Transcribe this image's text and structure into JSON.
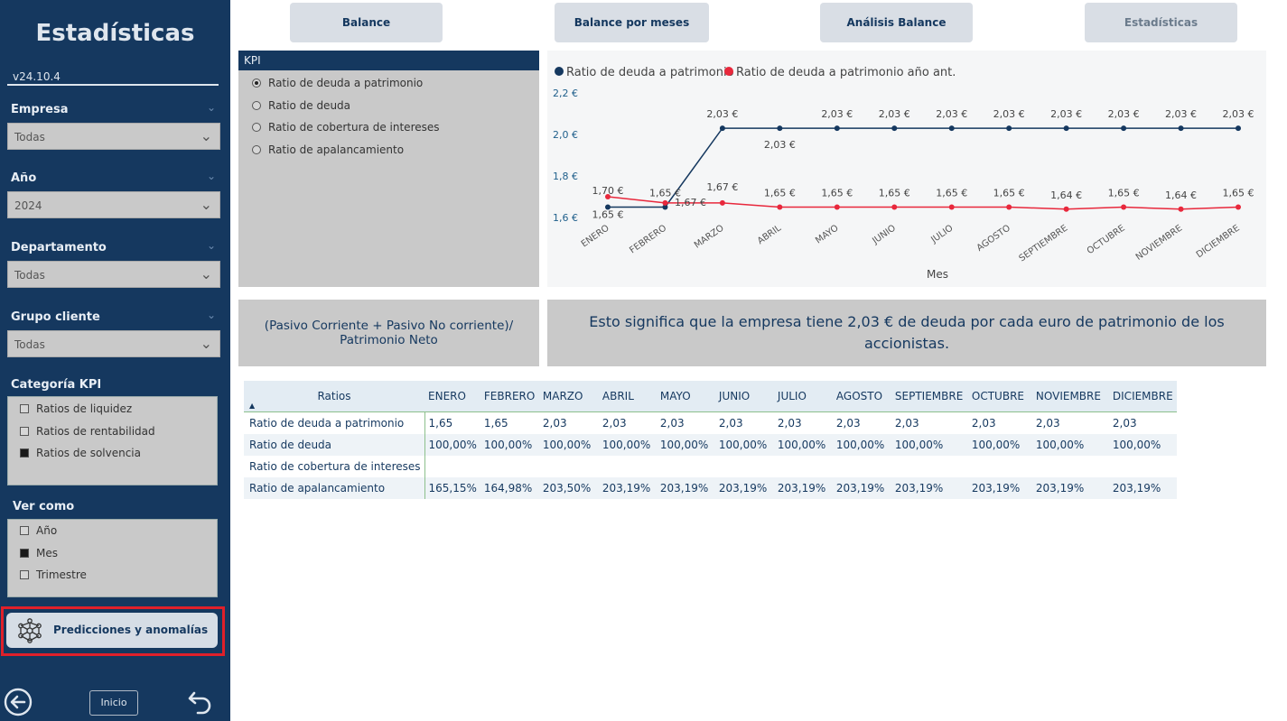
{
  "sidebar": {
    "title": "Estadísticas",
    "version": "v24.10.4",
    "filters": [
      {
        "label": "Empresa",
        "value": "Todas"
      },
      {
        "label": "Año",
        "value": "2024"
      },
      {
        "label": "Departamento",
        "value": "Todas"
      },
      {
        "label": "Grupo cliente",
        "value": "Todas"
      }
    ],
    "categoria": {
      "label": "Categoría KPI",
      "items": [
        {
          "label": "Ratios de liquidez",
          "checked": false
        },
        {
          "label": "Ratios de rentabilidad",
          "checked": false
        },
        {
          "label": "Ratios de solvencia",
          "checked": true
        }
      ]
    },
    "ver_como": {
      "label": "Ver como",
      "items": [
        {
          "label": "Año",
          "checked": false
        },
        {
          "label": "Mes",
          "checked": true
        },
        {
          "label": "Trimestre",
          "checked": false
        }
      ]
    },
    "predictions_button": "Predicciones y anomalías",
    "home_button": "Inicio"
  },
  "tabs": [
    "Balance",
    "Balance por meses",
    "Análisis Balance",
    "Estadísticas"
  ],
  "kpi": {
    "header": "KPI",
    "options": [
      {
        "label": "Ratio de deuda a patrimonio",
        "selected": true
      },
      {
        "label": "Ratio de deuda",
        "selected": false
      },
      {
        "label": "Ratio de cobertura de intereses",
        "selected": false
      },
      {
        "label": "Ratio de apalancamiento",
        "selected": false
      }
    ]
  },
  "chart_data": {
    "type": "line",
    "x": [
      "ENERO",
      "FEBRERO",
      "MARZO",
      "ABRIL",
      "MAYO",
      "JUNIO",
      "JULIO",
      "AGOSTO",
      "SEPTIEMBRE",
      "OCTUBRE",
      "NOVIEMBRE",
      "DICIEMBRE"
    ],
    "series": [
      {
        "name": "Ratio de deuda a patrimonio",
        "color": "#15385f",
        "values": [
          1.65,
          1.65,
          2.03,
          2.03,
          2.03,
          2.03,
          2.03,
          2.03,
          2.03,
          2.03,
          2.03,
          2.03
        ],
        "labels": [
          "1,65 €",
          "1,65 €",
          "2,03 €",
          "2,03 €",
          "2,03 €",
          "2,03 €",
          "2,03 €",
          "2,03 €",
          "2,03 €",
          "2,03 €",
          "2,03 €",
          "2,03 €"
        ]
      },
      {
        "name": "Ratio de deuda a patrimonio año ant.",
        "color": "#e8283c",
        "values": [
          1.7,
          1.67,
          1.67,
          1.65,
          1.65,
          1.65,
          1.65,
          1.65,
          1.64,
          1.65,
          1.64,
          1.65
        ],
        "labels": [
          "1,70 €",
          "1,67 €",
          "1,67 €",
          "1,65 €",
          "1,65 €",
          "1,65 €",
          "1,65 €",
          "1,65 €",
          "1,64 €",
          "1,65 €",
          "1,64 €",
          "1,65 €"
        ]
      }
    ],
    "yticks": [
      "2,2 €",
      "2,0 €",
      "1,8 €",
      "1,6 €"
    ],
    "ylim": [
      1.6,
      2.2
    ],
    "xlabel": "Mes",
    "ylabel": "",
    "legend": "top-left",
    "grid": false
  },
  "formula": "(Pasivo Corriente + Pasivo No corriente)/ Patrimonio Neto",
  "meaning": "Esto significa que la empresa tiene 2,03 € de deuda por cada euro de patrimonio de los accionistas.",
  "table": {
    "row_header": "Ratios",
    "columns": [
      "ENERO",
      "FEBRERO",
      "MARZO",
      "ABRIL",
      "MAYO",
      "JUNIO",
      "JULIO",
      "AGOSTO",
      "SEPTIEMBRE",
      "OCTUBRE",
      "NOVIEMBRE",
      "DICIEMBRE"
    ],
    "rows": [
      {
        "label": "Ratio de deuda a patrimonio",
        "values": [
          "1,65",
          "1,65",
          "2,03",
          "2,03",
          "2,03",
          "2,03",
          "2,03",
          "2,03",
          "2,03",
          "2,03",
          "2,03",
          "2,03"
        ]
      },
      {
        "label": "Ratio de deuda",
        "values": [
          "100,00%",
          "100,00%",
          "100,00%",
          "100,00%",
          "100,00%",
          "100,00%",
          "100,00%",
          "100,00%",
          "100,00%",
          "100,00%",
          "100,00%",
          "100,00%"
        ]
      },
      {
        "label": "Ratio de cobertura de intereses",
        "values": [
          "",
          "",
          "",
          "",
          "",
          "",
          "",
          "",
          "",
          "",
          "",
          ""
        ]
      },
      {
        "label": "Ratio de apalancamiento",
        "values": [
          "165,15%",
          "164,98%",
          "203,50%",
          "203,19%",
          "203,19%",
          "203,19%",
          "203,19%",
          "203,19%",
          "203,19%",
          "203,19%",
          "203,19%",
          "203,19%"
        ]
      }
    ]
  }
}
